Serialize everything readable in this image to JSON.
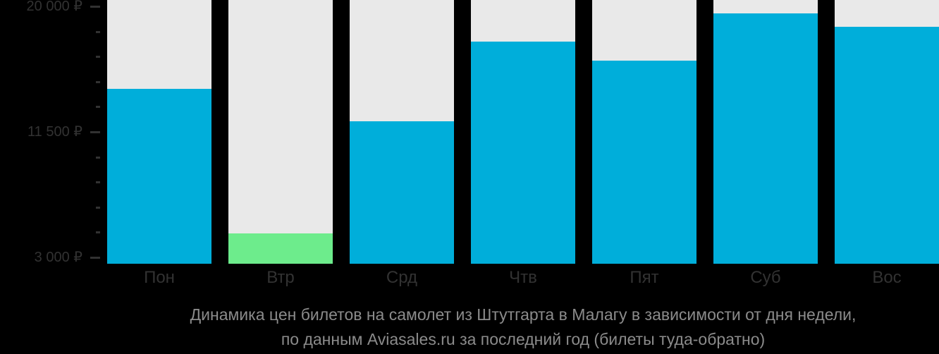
{
  "chart_data": {
    "type": "bar",
    "categories": [
      "Пон",
      "Втр",
      "Срд",
      "Чтв",
      "Пят",
      "Суб",
      "Вос"
    ],
    "values": [
      14400,
      4600,
      12200,
      17600,
      16300,
      19500,
      18600
    ],
    "lowest_index": 1,
    "currency": "₽",
    "y_axis": {
      "major_ticks": [
        {
          "value": 20000,
          "label": "20 000 ₽"
        },
        {
          "value": 11500,
          "label": "11 500 ₽"
        },
        {
          "value": 3000,
          "label": "3 000 ₽"
        }
      ],
      "minor_tick_step": 1700,
      "min": 3000,
      "max": 20000
    },
    "x_axis": {
      "labels": [
        "Пон",
        "Втр",
        "Срд",
        "Чтв",
        "Пят",
        "Суб",
        "Вос"
      ]
    },
    "legend": null,
    "grid": false,
    "colors": {
      "bar": "#00aeda",
      "bar_lowest": "#6dec8c",
      "track": "#e9e9e9",
      "background": "#000000",
      "axis_text": "#323232",
      "tick": "#323232",
      "caption_text": "#8b8b8b"
    },
    "caption": {
      "line1": "Динамика цен билетов на самолет из Штутгарта в Малагу в зависимости от дня недели,",
      "line2": "по данным Aviasales.ru за последний год (билеты туда-обратно)"
    }
  }
}
